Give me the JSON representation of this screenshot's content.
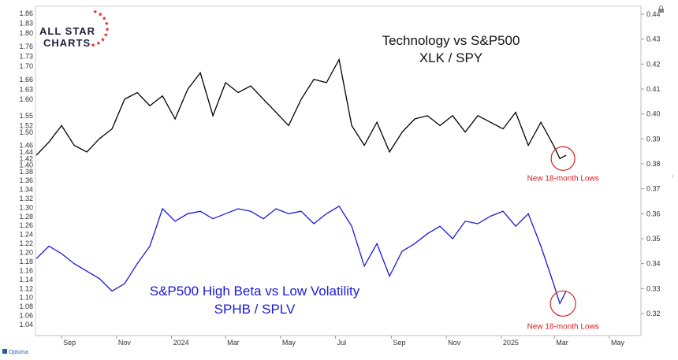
{
  "logo": {
    "line1": "ALL STAR",
    "line2": "CHARTS"
  },
  "footer": {
    "source": "Optuma"
  },
  "lock_icon": "lock-icon",
  "chart_data": [
    {
      "type": "line",
      "title": "Technology vs S&P500",
      "subtitle": "XLK / SPY",
      "axis": "left",
      "color": "#000000",
      "y_ticks": [
        1.38,
        1.4,
        1.42,
        1.44,
        1.46,
        1.5,
        1.52,
        1.55,
        1.6,
        1.63,
        1.66,
        1.7,
        1.73,
        1.76,
        1.8,
        1.83,
        1.86
      ],
      "ylim": [
        1.38,
        1.88
      ],
      "x": [
        "2023-08-04",
        "2023-08-18",
        "2023-09-01",
        "2023-09-15",
        "2023-09-29",
        "2023-10-13",
        "2023-10-27",
        "2023-11-10",
        "2023-11-24",
        "2023-12-08",
        "2023-12-22",
        "2024-01-05",
        "2024-01-19",
        "2024-02-02",
        "2024-02-16",
        "2024-03-01",
        "2024-03-15",
        "2024-03-29",
        "2024-04-12",
        "2024-04-26",
        "2024-05-10",
        "2024-05-24",
        "2024-06-07",
        "2024-06-21",
        "2024-07-05",
        "2024-07-19",
        "2024-08-02",
        "2024-08-16",
        "2024-08-30",
        "2024-09-13",
        "2024-09-27",
        "2024-10-11",
        "2024-10-25",
        "2024-11-08",
        "2024-11-22",
        "2024-12-06",
        "2024-12-20",
        "2025-01-03",
        "2025-01-17",
        "2025-01-31",
        "2025-02-14",
        "2025-02-28",
        "2025-03-07",
        "2025-03-14"
      ],
      "values": [
        1.43,
        1.47,
        1.52,
        1.46,
        1.44,
        1.48,
        1.51,
        1.6,
        1.62,
        1.58,
        1.61,
        1.54,
        1.63,
        1.68,
        1.55,
        1.65,
        1.62,
        1.64,
        1.6,
        1.56,
        1.52,
        1.6,
        1.66,
        1.65,
        1.72,
        1.52,
        1.46,
        1.53,
        1.44,
        1.5,
        1.54,
        1.55,
        1.52,
        1.55,
        1.5,
        1.55,
        1.53,
        1.51,
        1.56,
        1.46,
        1.53,
        1.46,
        1.42,
        1.43
      ],
      "annotation": "New 18-month Lows"
    },
    {
      "type": "line",
      "title": "S&P500 High Beta vs Low Volatility",
      "subtitle": "SPHB / SPLV",
      "axis": "right",
      "color": "#1a1adb",
      "y_ticks": [
        0.32,
        0.33,
        0.34,
        0.35,
        0.36,
        0.37,
        0.38,
        0.39,
        0.4,
        0.41,
        0.42,
        0.43,
        0.44
      ],
      "ylim": [
        0.3125,
        0.4425
      ],
      "x": [
        "2023-08-04",
        "2023-08-18",
        "2023-09-01",
        "2023-09-15",
        "2023-09-29",
        "2023-10-13",
        "2023-10-27",
        "2023-11-10",
        "2023-11-24",
        "2023-12-08",
        "2023-12-22",
        "2024-01-05",
        "2024-01-19",
        "2024-02-02",
        "2024-02-16",
        "2024-03-01",
        "2024-03-15",
        "2024-03-29",
        "2024-04-12",
        "2024-04-26",
        "2024-05-10",
        "2024-05-24",
        "2024-06-07",
        "2024-06-21",
        "2024-07-05",
        "2024-07-19",
        "2024-08-02",
        "2024-08-16",
        "2024-08-30",
        "2024-09-13",
        "2024-09-27",
        "2024-10-11",
        "2024-10-25",
        "2024-11-08",
        "2024-11-22",
        "2024-12-06",
        "2024-12-20",
        "2025-01-03",
        "2025-01-17",
        "2025-01-31",
        "2025-02-14",
        "2025-02-28",
        "2025-03-07",
        "2025-03-14"
      ],
      "values": [
        0.342,
        0.347,
        0.344,
        0.34,
        0.337,
        0.334,
        0.329,
        0.332,
        0.34,
        0.347,
        0.362,
        0.357,
        0.36,
        0.361,
        0.358,
        0.36,
        0.362,
        0.361,
        0.358,
        0.362,
        0.36,
        0.361,
        0.356,
        0.36,
        0.363,
        0.355,
        0.339,
        0.348,
        0.335,
        0.345,
        0.348,
        0.352,
        0.355,
        0.35,
        0.357,
        0.356,
        0.359,
        0.361,
        0.355,
        0.36,
        0.347,
        0.332,
        0.324,
        0.329
      ],
      "annotation": "New 18-month Lows"
    }
  ],
  "x_axis": {
    "ticks": [
      {
        "label": "Sep",
        "date": "2023-09-01"
      },
      {
        "label": "Nov",
        "date": "2023-11-01"
      },
      {
        "label": "2024",
        "date": "2024-01-01"
      },
      {
        "label": "Mar",
        "date": "2024-03-01"
      },
      {
        "label": "May",
        "date": "2024-05-01"
      },
      {
        "label": "Jul",
        "date": "2024-07-01"
      },
      {
        "label": "Sep",
        "date": "2024-09-01"
      },
      {
        "label": "Nov",
        "date": "2024-11-01"
      },
      {
        "label": "2025",
        "date": "2025-01-01"
      },
      {
        "label": "Mar",
        "date": "2025-03-01"
      },
      {
        "label": "May",
        "date": "2025-05-01"
      }
    ],
    "xlim": [
      "2023-08-03",
      "2025-06-05"
    ]
  },
  "grid": false,
  "legend": "none"
}
